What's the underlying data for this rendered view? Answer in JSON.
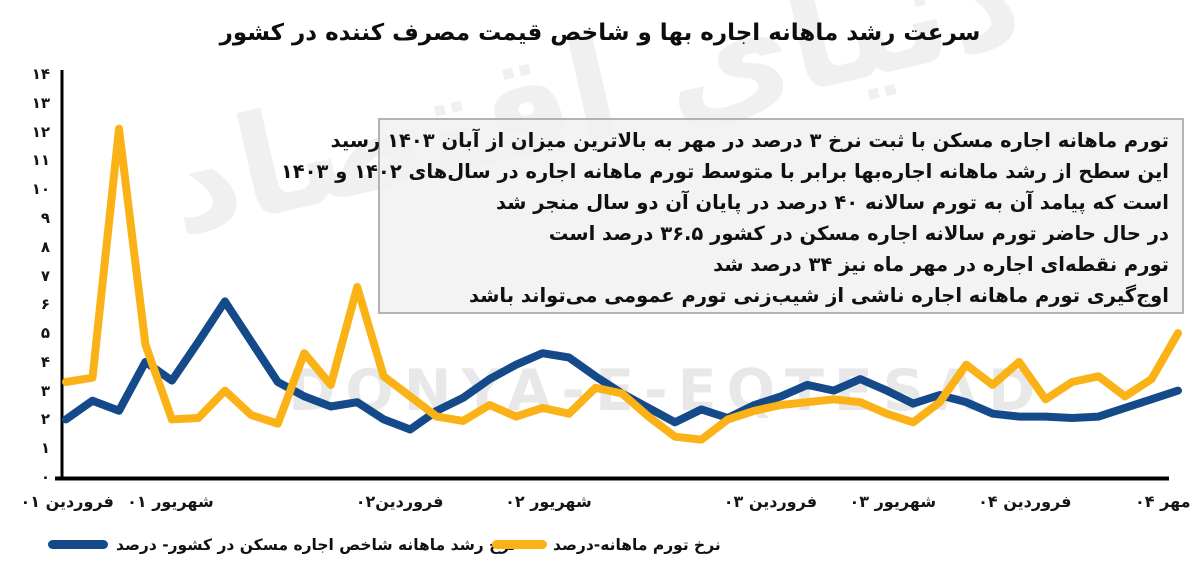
{
  "title": "سرعت رشد ماهانه اجاره بها و شاخص قیمت مصرف کننده در کشور",
  "watermarks": {
    "persian": "دنیای اقتصاد",
    "latin": "DONYA-E-EQTESAD"
  },
  "annotation_box": {
    "lines": [
      "تورم ماهانه اجاره مسکن با ثبت نرخ ۳ درصد در مهر به بالاترین میزان از آبان ۱۴۰۳ رسید",
      "این سطح از رشد ماهانه اجاره‌بها برابر با متوسط تورم ماهانه اجاره در سال‌های ۱۴۰۲ و ۱۴۰۳",
      "است که پیامد آن به تورم سالانه ۴۰ درصد در پایان آن دو سال منجر شد",
      "در حال حاضر تورم سالانه اجاره مسکن در کشور ۳۶.۵ درصد است",
      "تورم نقطه‌ای اجاره در مهر ماه نیز ۳۴ درصد شد",
      "اوج‌گیری تورم ماهانه اجاره ناشی از شیب‌زنی تورم عمومی می‌تواند باشد"
    ]
  },
  "legend": {
    "items": [
      {
        "key": "rent-index-growth",
        "label": "نرخ رشد ماهانه شاخص اجاره مسکن در کشور- درصد",
        "color": "#154A8A"
      },
      {
        "key": "monthly-inflation",
        "label": "نرخ تورم ماهانه-درصد",
        "color": "#FAB216"
      }
    ]
  },
  "colors": {
    "blue": "#154A8A",
    "yellow": "#FAB216",
    "axis": "#000000",
    "text": "#101010",
    "box_background": "#f0f0f0",
    "box_border": "#b3b3b3"
  },
  "chart_data": {
    "type": "line",
    "title": "سرعت رشد ماهانه اجاره بها و شاخص قیمت مصرف کننده در کشور",
    "xlabel": "",
    "ylabel": "",
    "ylim": [
      0,
      14
    ],
    "grid": false,
    "legend_position": "bottom",
    "y_ticks": [
      {
        "value": 0,
        "label": "۰"
      },
      {
        "value": 1,
        "label": "۱"
      },
      {
        "value": 2,
        "label": "۲"
      },
      {
        "value": 3,
        "label": "۳"
      },
      {
        "value": 4,
        "label": "۴"
      },
      {
        "value": 5,
        "label": "۵"
      },
      {
        "value": 6,
        "label": "۶"
      },
      {
        "value": 7,
        "label": "۷"
      },
      {
        "value": 8,
        "label": "۸"
      },
      {
        "value": 9,
        "label": "۹"
      },
      {
        "value": 10,
        "label": "۱۰"
      },
      {
        "value": 11,
        "label": "۱۱"
      },
      {
        "value": 12,
        "label": "۱۲"
      },
      {
        "value": 13,
        "label": "۱۳"
      },
      {
        "value": 14,
        "label": "۱۴"
      }
    ],
    "x_axis": {
      "tick_labels": [
        "فروردین ۰۱",
        "شهریور ۰۱",
        "فروردین۰۲",
        "شهریور ۰۲",
        "فروردین ۰۳",
        "شهریور ۰۳",
        "فروردین ۰۴",
        "مهر ۰۴"
      ],
      "tick_positions_pct": [
        5.6,
        14.2,
        33.3,
        45.7,
        64.2,
        74.4,
        85.4,
        96.9
      ],
      "range_note": "monthly points from Farvardin 1401 to Mehr 1404"
    },
    "series": [
      {
        "key": "rent-index-growth",
        "name": "نرخ رشد ماهانه شاخص اجاره مسکن در کشور- درصد",
        "color": "#154A8A",
        "values": [
          2.0,
          2.65,
          2.3,
          4.0,
          3.35,
          4.7,
          6.1,
          4.7,
          3.3,
          2.8,
          2.45,
          2.6,
          2.0,
          1.65,
          2.3,
          2.75,
          3.4,
          3.9,
          4.3,
          4.15,
          3.5,
          2.9,
          2.4,
          1.9,
          2.35,
          2.05,
          2.5,
          2.8,
          3.2,
          3.0,
          3.4,
          3.0,
          2.55,
          2.85,
          2.6,
          2.2,
          2.1,
          2.1,
          2.05,
          2.1,
          2.4,
          2.7,
          3.0
        ]
      },
      {
        "key": "monthly-inflation",
        "name": "نرخ تورم ماهانه-درصد",
        "color": "#FAB216",
        "values": [
          3.3,
          3.45,
          12.1,
          4.6,
          2.0,
          2.05,
          3.0,
          2.15,
          1.85,
          4.3,
          3.2,
          6.6,
          3.5,
          2.8,
          2.1,
          1.95,
          2.5,
          2.1,
          2.4,
          2.2,
          3.1,
          2.9,
          2.1,
          1.4,
          1.3,
          2.0,
          2.3,
          2.5,
          2.6,
          2.7,
          2.6,
          2.2,
          1.9,
          2.6,
          3.9,
          3.2,
          4.0,
          2.7,
          3.3,
          3.5,
          2.8,
          3.4,
          5.0
        ]
      }
    ]
  }
}
